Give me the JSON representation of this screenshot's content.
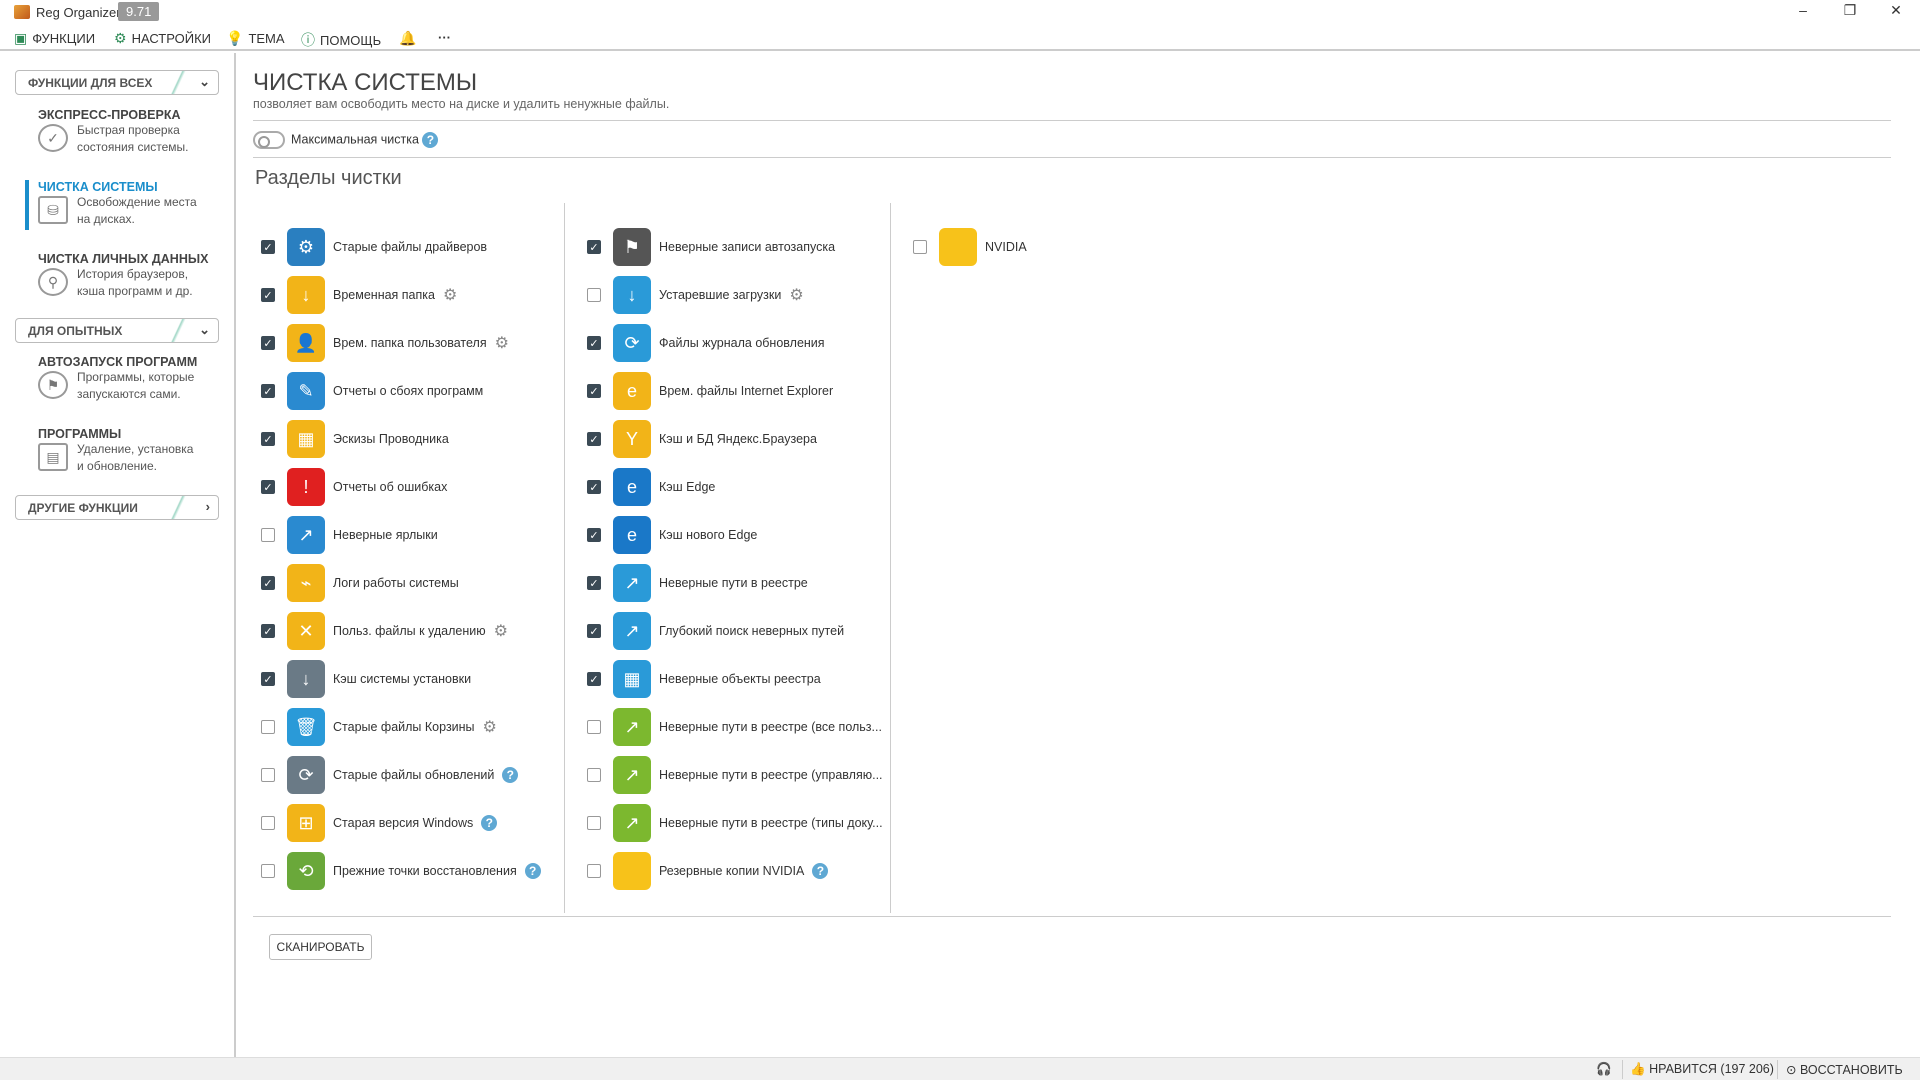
{
  "app": {
    "title": "Reg Organizer",
    "version": "9.71"
  },
  "menu": [
    {
      "label": "ФУНКЦИИ",
      "icon": "toolbox-icon"
    },
    {
      "label": "НАСТРОЙКИ",
      "icon": "gear-icon"
    },
    {
      "label": "ТЕМА",
      "icon": "lightbulb-icon"
    },
    {
      "label": "ПОМОЩЬ",
      "icon": "help-icon"
    }
  ],
  "sidebar": {
    "groups": [
      "ФУНКЦИИ ДЛЯ ВСЕХ",
      "ДЛЯ ОПЫТНЫХ",
      "ДРУГИЕ ФУНКЦИИ"
    ],
    "items": [
      {
        "title": "ЭКСПРЕСС-ПРОВЕРКА",
        "d1": "Быстрая проверка",
        "d2": "состояния системы."
      },
      {
        "title": "ЧИСТКА СИСТЕМЫ",
        "d1": "Освобождение места",
        "d2": "на дисках.",
        "active": true
      },
      {
        "title": "ЧИСТКА ЛИЧНЫХ ДАННЫХ",
        "d1": "История браузеров,",
        "d2": "кэша программ и др."
      },
      {
        "title": "АВТОЗАПУСК ПРОГРАММ",
        "d1": "Программы, которые",
        "d2": "запускаются сами."
      },
      {
        "title": "ПРОГРАММЫ",
        "d1": "Удаление, установка",
        "d2": "и обновление."
      }
    ]
  },
  "main": {
    "title": "ЧИСТКА СИСТЕМЫ",
    "subtitle": "позволяет вам освободить место на диске и удалить ненужные файлы.",
    "max_clean": "Максимальная чистка",
    "max_clean_on": false,
    "sections_title": "Разделы чистки",
    "scan": "СКАНИРОВАТЬ",
    "columns": [
      [
        {
          "label": "Старые файлы драйверов",
          "checked": true,
          "color": "#2a7fc0",
          "glyph": "⚙"
        },
        {
          "label": "Временная папка",
          "checked": true,
          "extra": "gear",
          "color": "#f2b418",
          "glyph": "↓"
        },
        {
          "label": "Врем. папка пользователя",
          "checked": true,
          "extra": "gear",
          "color": "#f2b418",
          "glyph": "👤"
        },
        {
          "label": "Отчеты о сбоях программ",
          "checked": true,
          "color": "#2a8ad0",
          "glyph": "✎"
        },
        {
          "label": "Эскизы Проводника",
          "checked": true,
          "color": "#f2b418",
          "glyph": "▦"
        },
        {
          "label": "Отчеты об ошибках",
          "checked": true,
          "color": "#e02020",
          "glyph": "!"
        },
        {
          "label": "Неверные ярлыки",
          "checked": false,
          "color": "#2a8ad0",
          "glyph": "↗"
        },
        {
          "label": "Логи работы системы",
          "checked": true,
          "color": "#f2b418",
          "glyph": "⌁"
        },
        {
          "label": "Польз. файлы к удалению",
          "checked": true,
          "extra": "gear",
          "color": "#f2b418",
          "glyph": "✕"
        },
        {
          "label": "Кэш системы установки",
          "checked": true,
          "color": "#6a7a86",
          "glyph": "↓"
        },
        {
          "label": "Старые файлы Корзины",
          "checked": false,
          "extra": "gear",
          "color": "#2a9ad8",
          "glyph": "🗑"
        },
        {
          "label": "Старые файлы обновлений",
          "checked": false,
          "extra": "help",
          "color": "#6a7a86",
          "glyph": "⟳"
        },
        {
          "label": "Старая версия Windows",
          "checked": false,
          "extra": "help",
          "color": "#f2b418",
          "glyph": "⊞"
        },
        {
          "label": "Прежние точки восстановления",
          "checked": false,
          "extra": "help",
          "color": "#6aa83a",
          "glyph": "⟲"
        }
      ],
      [
        {
          "label": "Неверные записи автозапуска",
          "checked": true,
          "color": "#555555",
          "glyph": "⚑"
        },
        {
          "label": "Устаревшие загрузки",
          "checked": false,
          "extra": "gear",
          "color": "#2a9ad8",
          "glyph": "↓"
        },
        {
          "label": "Файлы журнала обновления",
          "checked": true,
          "color": "#2a9ad8",
          "glyph": "⟳"
        },
        {
          "label": "Врем. файлы Internet Explorer",
          "checked": true,
          "color": "#f2b418",
          "glyph": "e"
        },
        {
          "label": "Кэш и БД Яндекс.Браузера",
          "checked": true,
          "color": "#f2b418",
          "glyph": "Y"
        },
        {
          "label": "Кэш Edge",
          "checked": true,
          "color": "#1a78c8",
          "glyph": "e"
        },
        {
          "label": "Кэш нового Edge",
          "checked": true,
          "color": "#1a78c8",
          "glyph": "e"
        },
        {
          "label": "Неверные пути в реестре",
          "checked": true,
          "color": "#2a9ad8",
          "glyph": "↗"
        },
        {
          "label": "Глубокий поиск неверных путей",
          "checked": true,
          "color": "#2a9ad8",
          "glyph": "↗"
        },
        {
          "label": "Неверные объекты реестра",
          "checked": true,
          "color": "#2a9ad8",
          "glyph": "▦"
        },
        {
          "label": "Неверные пути в реестре (все польз...",
          "checked": false,
          "color": "#7cb82f",
          "glyph": "↗"
        },
        {
          "label": "Неверные пути в реестре (управляю...",
          "checked": false,
          "color": "#7cb82f",
          "glyph": "↗"
        },
        {
          "label": "Неверные пути в реестре (типы доку...",
          "checked": false,
          "color": "#7cb82f",
          "glyph": "↗"
        },
        {
          "label": "Резервные копии NVIDIA",
          "checked": false,
          "extra": "help",
          "color": "#f7c21a",
          "glyph": ""
        }
      ],
      [
        {
          "label": "NVIDIA",
          "checked": false,
          "color": "#f7c21a",
          "glyph": ""
        }
      ]
    ]
  },
  "status": {
    "likes": "НРАВИТСЯ (197 206)",
    "restore": "ВОССТАНОВИТЬ"
  }
}
